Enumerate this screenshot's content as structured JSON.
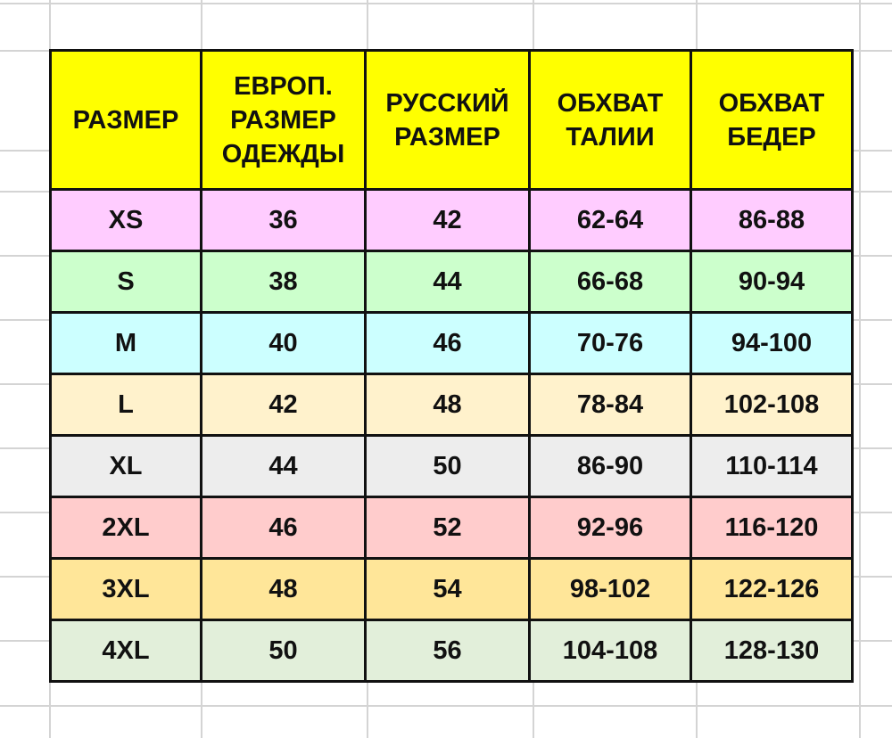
{
  "table": {
    "headers": [
      [
        "РАЗМЕР"
      ],
      [
        "ЕВРОП.",
        "РАЗМЕР",
        "ОДЕЖДЫ"
      ],
      [
        "РУССКИЙ",
        "РАЗМЕР"
      ],
      [
        "ОБХВАТ",
        "ТАЛИИ"
      ],
      [
        "ОБХВАТ",
        "БЕДЕР"
      ]
    ],
    "header_color": "#ffff00",
    "rows": [
      {
        "color": "#ffccff",
        "cells": [
          "XS",
          "36",
          "42",
          "62-64",
          "86-88"
        ]
      },
      {
        "color": "#ccffcc",
        "cells": [
          "S",
          "38",
          "44",
          "66-68",
          "90-94"
        ]
      },
      {
        "color": "#ccffff",
        "cells": [
          "M",
          "40",
          "46",
          "70-76",
          "94-100"
        ]
      },
      {
        "color": "#fff2cc",
        "cells": [
          "L",
          "42",
          "48",
          "78-84",
          "102-108"
        ]
      },
      {
        "color": "#ededed",
        "cells": [
          "XL",
          "44",
          "50",
          "86-90",
          "110-114"
        ]
      },
      {
        "color": "#ffcccc",
        "cells": [
          "2XL",
          "46",
          "52",
          "92-96",
          "116-120"
        ]
      },
      {
        "color": "#ffe699",
        "cells": [
          "3XL",
          "48",
          "54",
          "98-102",
          "122-126"
        ]
      },
      {
        "color": "#e2efda",
        "cells": [
          "4XL",
          "50",
          "56",
          "104-108",
          "128-130"
        ]
      }
    ]
  }
}
